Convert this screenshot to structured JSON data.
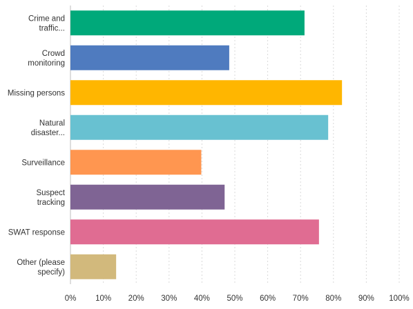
{
  "chart_data": {
    "type": "bar",
    "orientation": "horizontal",
    "categories": [
      [
        "Crime and",
        "traffic..."
      ],
      [
        "Crowd",
        "monitoring"
      ],
      [
        "Missing persons"
      ],
      [
        "Natural",
        "disaster..."
      ],
      [
        "Surveillance"
      ],
      [
        "Suspect",
        "tracking"
      ],
      [
        "SWAT response"
      ],
      [
        "Other (please",
        "specify)"
      ]
    ],
    "values": [
      71.2,
      48.3,
      82.6,
      78.4,
      39.8,
      46.9,
      75.6,
      13.9
    ],
    "colors": [
      "#00a97a",
      "#4f7bbf",
      "#ffb600",
      "#68c1d1",
      "#ff9650",
      "#7f6494",
      "#e06c92",
      "#d2b97c"
    ],
    "x_ticks": [
      "0%",
      "10%",
      "20%",
      "30%",
      "40%",
      "50%",
      "60%",
      "70%",
      "80%",
      "90%",
      "100%"
    ],
    "xlim": [
      0,
      100
    ],
    "grid": true,
    "title": "",
    "xlabel": "",
    "ylabel": ""
  }
}
